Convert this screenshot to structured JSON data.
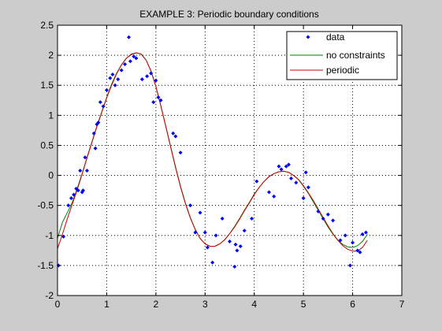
{
  "chart_data": {
    "type": "line",
    "title": "EXAMPLE 3: Periodic boundary conditions",
    "xlabel": "",
    "ylabel": "",
    "xlim": [
      0,
      7
    ],
    "ylim": [
      -2,
      2.5
    ],
    "xticks": [
      0,
      1,
      2,
      3,
      4,
      5,
      6,
      7
    ],
    "yticks": [
      -2,
      -1.5,
      -1,
      -0.5,
      0,
      0.5,
      1,
      1.5,
      2,
      2.5
    ],
    "grid": true,
    "legend_position": "top-right",
    "legend": [
      "data",
      "no constraints",
      "periodic"
    ],
    "colors": {
      "data": "#0000ff",
      "no_constraints": "#008000",
      "periodic": "#cc0000",
      "background": "#cccccc",
      "axes": "#ffffff"
    },
    "series": [
      {
        "name": "data",
        "type": "scatter",
        "x": [
          0.02,
          0.12,
          0.22,
          0.28,
          0.33,
          0.38,
          0.42,
          0.46,
          0.5,
          0.52,
          0.56,
          0.6,
          0.74,
          0.77,
          0.8,
          0.83,
          0.87,
          0.93,
          1.0,
          1.07,
          1.12,
          1.17,
          1.23,
          1.3,
          1.37,
          1.45,
          1.48,
          1.55,
          1.6,
          1.72,
          1.82,
          1.9,
          1.95,
          2.0,
          2.05,
          2.1,
          2.35,
          2.4,
          2.5,
          2.7,
          2.8,
          2.9,
          3.0,
          3.05,
          3.15,
          3.22,
          3.35,
          3.5,
          3.6,
          3.62,
          3.65,
          3.72,
          3.8,
          3.95,
          4.05,
          4.3,
          4.4,
          4.5,
          4.55,
          4.65,
          4.7,
          4.75,
          4.85,
          5.0,
          5.05,
          5.1,
          5.3,
          5.4,
          5.5,
          5.6,
          5.75,
          5.85,
          5.95,
          6.0,
          6.1,
          6.15,
          6.2,
          6.27
        ],
        "y": [
          -1.5,
          -1.02,
          -0.5,
          -0.38,
          -0.32,
          -0.22,
          -0.25,
          0.08,
          -0.28,
          -0.25,
          0.3,
          0.08,
          0.7,
          0.45,
          0.85,
          0.88,
          1.22,
          1.15,
          1.42,
          1.62,
          1.68,
          1.5,
          1.6,
          1.75,
          1.85,
          2.3,
          1.9,
          1.98,
          1.95,
          1.6,
          1.65,
          1.7,
          1.22,
          1.58,
          1.3,
          1.25,
          0.7,
          0.65,
          0.38,
          -0.5,
          -0.95,
          -0.62,
          -0.95,
          -1.2,
          -1.45,
          -1.0,
          -0.72,
          -1.1,
          -1.52,
          -1.15,
          -1.25,
          -1.18,
          -0.92,
          -0.72,
          -0.1,
          -0.28,
          -0.35,
          0.15,
          0.1,
          0.15,
          0.18,
          -0.05,
          -0.12,
          -0.38,
          0.05,
          -0.2,
          -0.6,
          -0.72,
          -0.65,
          -0.75,
          -1.08,
          -1.0,
          -1.5,
          -1.12,
          -1.25,
          -1.28,
          -0.98,
          -0.95
        ]
      },
      {
        "name": "no constraints",
        "type": "line",
        "x": [
          0,
          0.1,
          0.2,
          0.3,
          0.4,
          0.5,
          0.6,
          0.7,
          0.8,
          0.9,
          1.0,
          1.1,
          1.2,
          1.3,
          1.4,
          1.5,
          1.6,
          1.7,
          1.8,
          1.9,
          2.0,
          2.1,
          2.2,
          2.3,
          2.4,
          2.5,
          2.6,
          2.7,
          2.8,
          2.9,
          3.0,
          3.1,
          3.2,
          3.3,
          3.4,
          3.5,
          3.6,
          3.7,
          3.8,
          3.9,
          4.0,
          4.1,
          4.2,
          4.3,
          4.4,
          4.5,
          4.6,
          4.7,
          4.8,
          4.9,
          5.0,
          5.1,
          5.2,
          5.3,
          5.4,
          5.5,
          5.6,
          5.7,
          5.8,
          5.9,
          6.0,
          6.1,
          6.2,
          6.3
        ],
        "y": [
          -1.05,
          -0.78,
          -0.62,
          -0.45,
          -0.22,
          0.03,
          0.3,
          0.56,
          0.82,
          1.06,
          1.3,
          1.52,
          1.7,
          1.84,
          1.95,
          2.01,
          2.04,
          2.02,
          1.92,
          1.74,
          1.48,
          1.16,
          0.82,
          0.48,
          0.14,
          -0.18,
          -0.46,
          -0.7,
          -0.9,
          -1.05,
          -1.14,
          -1.18,
          -1.18,
          -1.14,
          -1.07,
          -0.97,
          -0.85,
          -0.72,
          -0.58,
          -0.45,
          -0.31,
          -0.2,
          -0.1,
          -0.02,
          0.03,
          0.06,
          0.07,
          0.05,
          0.0,
          -0.07,
          -0.18,
          -0.3,
          -0.44,
          -0.58,
          -0.72,
          -0.86,
          -0.98,
          -1.08,
          -1.15,
          -1.19,
          -1.2,
          -1.17,
          -1.1,
          -0.98
        ]
      },
      {
        "name": "periodic",
        "type": "line",
        "x": [
          0,
          0.1,
          0.2,
          0.3,
          0.4,
          0.5,
          0.6,
          0.7,
          0.8,
          0.9,
          1.0,
          1.1,
          1.2,
          1.3,
          1.4,
          1.5,
          1.6,
          1.7,
          1.8,
          1.9,
          2.0,
          2.1,
          2.2,
          2.3,
          2.4,
          2.5,
          2.6,
          2.7,
          2.8,
          2.9,
          3.0,
          3.1,
          3.2,
          3.3,
          3.4,
          3.5,
          3.6,
          3.7,
          3.8,
          3.9,
          4.0,
          4.1,
          4.2,
          4.3,
          4.4,
          4.5,
          4.6,
          4.7,
          4.8,
          4.9,
          5.0,
          5.1,
          5.2,
          5.3,
          5.4,
          5.5,
          5.6,
          5.7,
          5.8,
          5.9,
          6.0,
          6.1,
          6.2,
          6.3
        ],
        "y": [
          -1.22,
          -0.98,
          -0.72,
          -0.48,
          -0.24,
          0.02,
          0.29,
          0.55,
          0.81,
          1.05,
          1.29,
          1.5,
          1.69,
          1.84,
          1.95,
          2.02,
          2.04,
          2.02,
          1.92,
          1.74,
          1.48,
          1.16,
          0.82,
          0.47,
          0.13,
          -0.19,
          -0.47,
          -0.71,
          -0.9,
          -1.05,
          -1.14,
          -1.18,
          -1.18,
          -1.14,
          -1.07,
          -0.97,
          -0.86,
          -0.73,
          -0.59,
          -0.46,
          -0.32,
          -0.2,
          -0.1,
          -0.02,
          0.03,
          0.06,
          0.07,
          0.05,
          0.0,
          -0.07,
          -0.17,
          -0.29,
          -0.42,
          -0.56,
          -0.7,
          -0.84,
          -0.97,
          -1.08,
          -1.17,
          -1.23,
          -1.26,
          -1.26,
          -1.2,
          -1.08
        ]
      }
    ]
  }
}
